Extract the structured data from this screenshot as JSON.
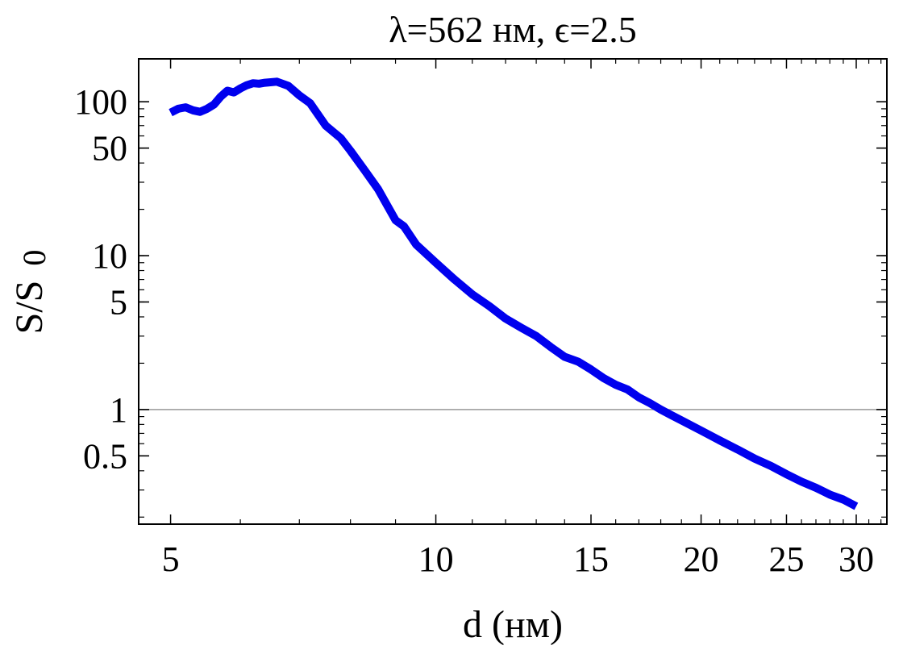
{
  "chart_data": {
    "type": "line",
    "title": "λ=562 нм, ϵ=2.5",
    "xlabel": "d (нм)",
    "ylabel_main": "S/S",
    "ylabel_sub": "0",
    "x_scale": "log",
    "y_scale": "log",
    "xlim": [
      4.6,
      32.5
    ],
    "ylim": [
      0.18,
      190
    ],
    "x_ticks": [
      5,
      10,
      15,
      20,
      25,
      30
    ],
    "x_tick_labels": [
      "5",
      "10",
      "15",
      "20",
      "25",
      "30"
    ],
    "y_ticks": [
      0.5,
      1,
      5,
      10,
      50,
      100
    ],
    "y_tick_labels": [
      "0.5",
      "1",
      "5",
      "10",
      "50",
      "100"
    ],
    "reference_line": {
      "y": 1,
      "color": "#999999"
    },
    "grid": false,
    "series": [
      {
        "color": "#0000ee",
        "x": [
          5.0,
          5.1,
          5.2,
          5.3,
          5.4,
          5.5,
          5.6,
          5.7,
          5.8,
          5.9,
          6.0,
          6.1,
          6.2,
          6.3,
          6.4,
          6.6,
          6.8,
          7.0,
          7.2,
          7.5,
          7.8,
          8.0,
          8.3,
          8.6,
          9.0,
          9.2,
          9.5,
          10.0,
          10.5,
          11.0,
          11.5,
          12.0,
          12.5,
          13.0,
          13.5,
          14.0,
          14.5,
          15.0,
          15.5,
          16.0,
          16.5,
          17.0,
          17.5,
          18.0,
          18.5,
          19.0,
          20.0,
          21.0,
          22.0,
          23.0,
          24.0,
          25.0,
          26.0,
          27.0,
          28.0,
          29.0,
          30.0
        ],
        "y": [
          85,
          90,
          92,
          88,
          86,
          90,
          96,
          108,
          118,
          115,
          122,
          128,
          132,
          131,
          133,
          135,
          127,
          110,
          98,
          70,
          58,
          48,
          36,
          27,
          17,
          15.5,
          11.8,
          9.0,
          7.0,
          5.6,
          4.7,
          3.9,
          3.4,
          3.0,
          2.55,
          2.2,
          2.05,
          1.82,
          1.6,
          1.45,
          1.35,
          1.2,
          1.1,
          1.0,
          0.92,
          0.85,
          0.73,
          0.63,
          0.55,
          0.48,
          0.43,
          0.38,
          0.34,
          0.31,
          0.28,
          0.26,
          0.235
        ]
      }
    ]
  }
}
